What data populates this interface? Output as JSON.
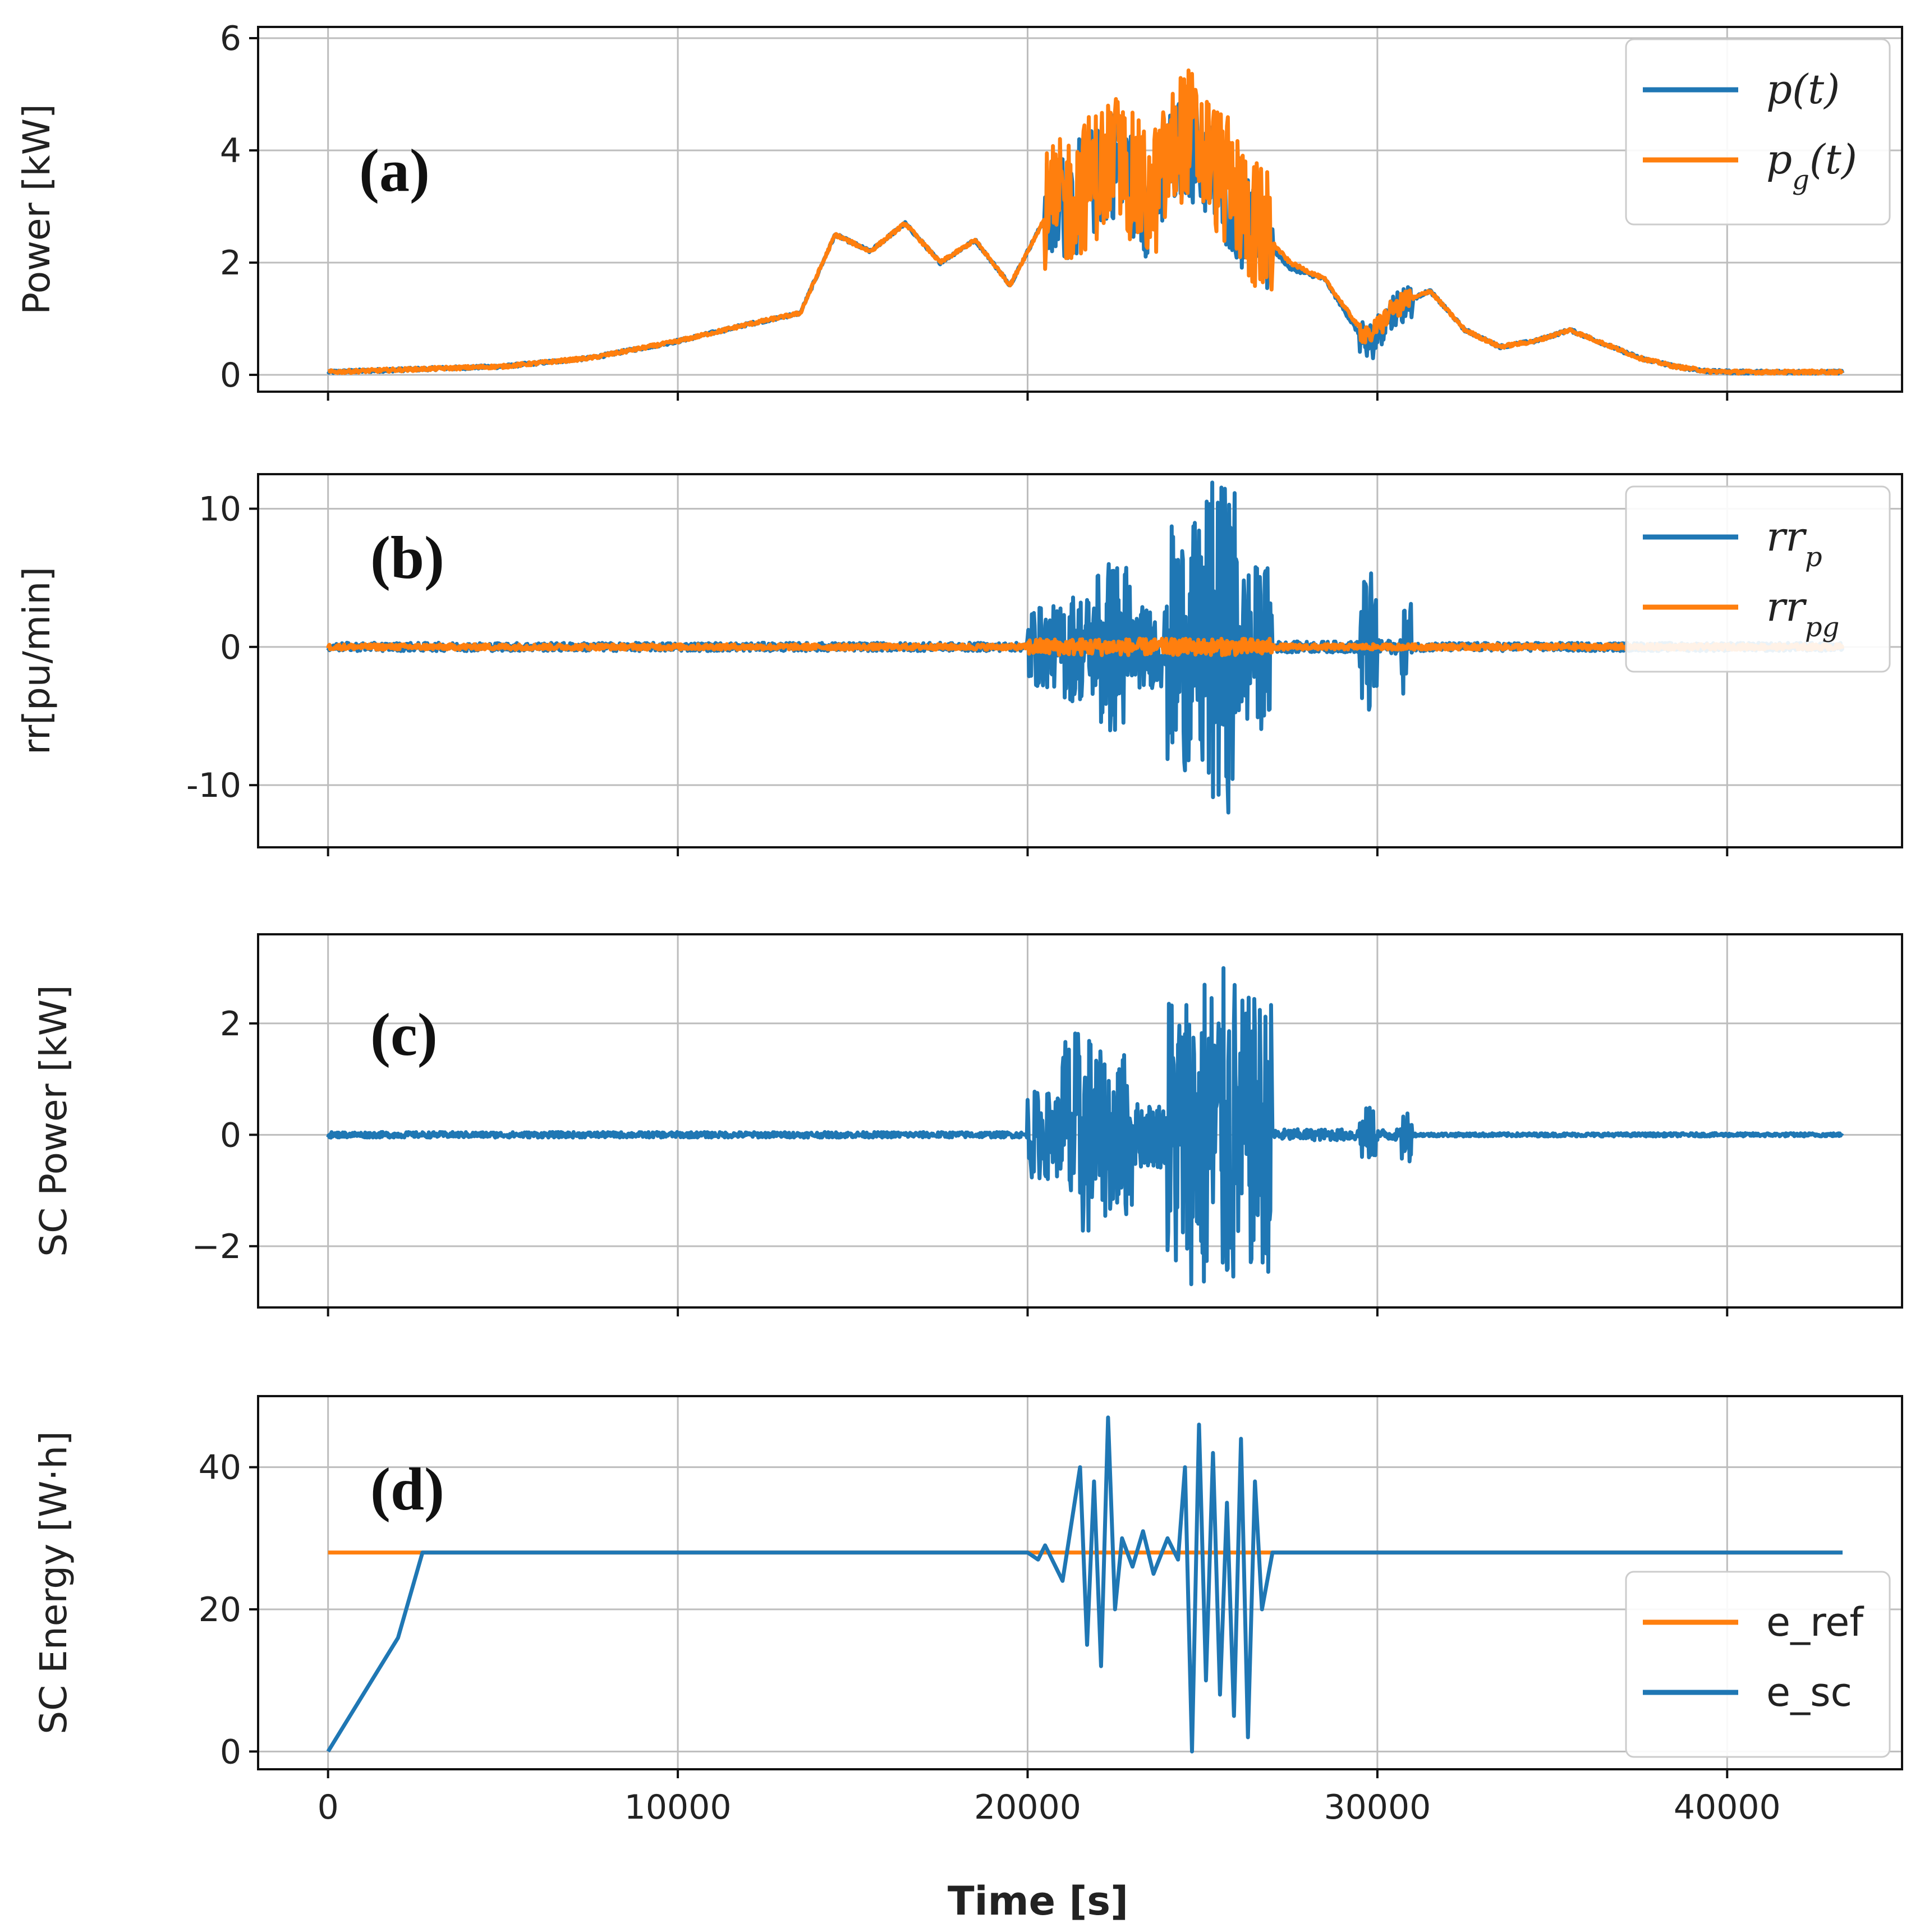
{
  "colors": {
    "blue": "#1f77b4",
    "orange": "#ff7f0e",
    "axis": "#111111",
    "grid": "#bdbdbd"
  },
  "xlabel": "Time [s]",
  "chart_data": [
    {
      "type": "line",
      "panel_label": "(a)",
      "ylabel": "Power [kW]",
      "xlim": [
        -2000,
        45000
      ],
      "ylim": [
        -0.3,
        6.2
      ],
      "xticks": [
        0,
        10000,
        20000,
        30000,
        40000
      ],
      "xtick_labels": [],
      "yticks": [
        0,
        2,
        4,
        6
      ],
      "ytick_labels": [
        "0",
        "2",
        "4",
        "6"
      ],
      "legend": {
        "position": "top-right",
        "entries": [
          {
            "label": "p(t)",
            "color": "blue",
            "math": true
          },
          {
            "label": "p",
            "sub": "g",
            "suffix": "(t)",
            "color": "orange",
            "math": true
          }
        ]
      },
      "series": [
        {
          "name": "p(t)",
          "color": "blue",
          "kind": "smooth",
          "x": [
            0,
            2500,
            5000,
            7500,
            10000,
            12000,
            13500,
            14500,
            15500,
            16500,
            17500,
            18500,
            19500,
            20500,
            21500,
            22500,
            23500,
            24500,
            25500,
            26500,
            27500,
            28500,
            29700,
            30500,
            31500,
            32500,
            33500,
            34500,
            35500,
            36500,
            37500,
            38500,
            39500,
            40500,
            41500,
            42500,
            43300
          ],
          "y": [
            0.05,
            0.1,
            0.15,
            0.3,
            0.6,
            0.9,
            1.1,
            2.5,
            2.2,
            2.7,
            2.0,
            2.4,
            1.6,
            2.8,
            3.2,
            3.8,
            3.0,
            4.2,
            3.4,
            2.6,
            1.9,
            1.7,
            0.5,
            1.2,
            1.5,
            0.8,
            0.5,
            0.6,
            0.8,
            0.55,
            0.3,
            0.15,
            0.06,
            0.05,
            0.05,
            0.05,
            0.05
          ],
          "noise_windows": [
            [
              20500,
              27000,
              1.0
            ],
            [
              29500,
              31000,
              0.35
            ]
          ]
        },
        {
          "name": "p_g(t)",
          "color": "orange",
          "kind": "smooth",
          "x": [
            0,
            2500,
            5000,
            7500,
            10000,
            12000,
            13500,
            14500,
            15500,
            16500,
            17500,
            18500,
            19500,
            20500,
            21500,
            22500,
            23500,
            24500,
            25500,
            26500,
            27500,
            28500,
            29700,
            30500,
            31500,
            32500,
            33500,
            34500,
            35500,
            36500,
            37500,
            38500,
            39500,
            40500,
            41500,
            42500,
            43300
          ],
          "y": [
            0.05,
            0.1,
            0.15,
            0.3,
            0.6,
            0.9,
            1.1,
            2.5,
            2.2,
            2.7,
            2.0,
            2.4,
            1.6,
            2.8,
            3.3,
            3.9,
            3.1,
            4.4,
            3.6,
            2.7,
            2.0,
            1.7,
            0.65,
            1.2,
            1.5,
            0.8,
            0.5,
            0.6,
            0.8,
            0.55,
            0.3,
            0.15,
            0.06,
            0.05,
            0.05,
            0.05,
            0.05
          ],
          "noise_windows": [
            [
              20500,
              27000,
              1.2
            ],
            [
              29500,
              31000,
              0.2
            ]
          ]
        }
      ]
    },
    {
      "type": "line",
      "panel_label": "(b)",
      "ylabel": "rr[pu/min]",
      "xlim": [
        -2000,
        45000
      ],
      "ylim": [
        -14.5,
        12.5
      ],
      "xticks": [
        0,
        10000,
        20000,
        30000,
        40000
      ],
      "xtick_labels": [],
      "yticks": [
        -10,
        0,
        10
      ],
      "ytick_labels": [
        "-10",
        "0",
        "10"
      ],
      "legend": {
        "position": "top-right",
        "entries": [
          {
            "label": "rr",
            "sub": "p",
            "color": "blue",
            "math": true
          },
          {
            "label": "rr",
            "sub": "pg",
            "color": "orange",
            "math": true
          }
        ]
      },
      "series": [
        {
          "name": "rr_p",
          "color": "blue",
          "kind": "spiky",
          "base": 0,
          "envelope": [
            [
              0,
              20000,
              0.3
            ],
            [
              20000,
              21000,
              3.0
            ],
            [
              21000,
              22000,
              4.0
            ],
            [
              22000,
              23000,
              6.5
            ],
            [
              23000,
              24000,
              3.0
            ],
            [
              24000,
              25000,
              9.0
            ],
            [
              25000,
              26000,
              12.0
            ],
            [
              26000,
              27000,
              6.0
            ],
            [
              27000,
              29500,
              0.4
            ],
            [
              29500,
              30000,
              5.5
            ],
            [
              30000,
              30700,
              0.5
            ],
            [
              30700,
              31000,
              3.5
            ],
            [
              31000,
              43300,
              0.3
            ]
          ]
        },
        {
          "name": "rr_pg",
          "color": "orange",
          "kind": "spiky",
          "base": 0,
          "envelope": [
            [
              0,
              20000,
              0.2
            ],
            [
              20000,
              27000,
              0.6
            ],
            [
              27000,
              43300,
              0.2
            ]
          ]
        }
      ]
    },
    {
      "type": "line",
      "panel_label": "(c)",
      "ylabel": "SC Power [kW]",
      "xlim": [
        -2000,
        45000
      ],
      "ylim": [
        -3.1,
        3.6
      ],
      "xticks": [
        0,
        10000,
        20000,
        30000,
        40000
      ],
      "xtick_labels": [],
      "yticks": [
        -2,
        0,
        2
      ],
      "ytick_labels": [
        "−2",
        "0",
        "2"
      ],
      "legend": null,
      "series": [
        {
          "name": "SC power",
          "color": "blue",
          "kind": "spiky",
          "base": 0,
          "envelope": [
            [
              0,
              20000,
              0.05
            ],
            [
              20000,
              21000,
              0.8
            ],
            [
              21000,
              22000,
              1.9
            ],
            [
              22000,
              23000,
              1.5
            ],
            [
              23000,
              24000,
              0.6
            ],
            [
              24000,
              25000,
              2.7
            ],
            [
              25000,
              26000,
              3.0
            ],
            [
              26000,
              27000,
              2.5
            ],
            [
              27000,
              29500,
              0.1
            ],
            [
              29500,
              30000,
              0.5
            ],
            [
              30000,
              30700,
              0.1
            ],
            [
              30700,
              31000,
              0.5
            ],
            [
              31000,
              43300,
              0.03
            ]
          ]
        }
      ]
    },
    {
      "type": "line",
      "panel_label": "(d)",
      "ylabel": "SC Energy [W·h]",
      "xlim": [
        -2000,
        45000
      ],
      "ylim": [
        -2.5,
        50
      ],
      "xticks": [
        0,
        10000,
        20000,
        30000,
        40000
      ],
      "xtick_labels": [
        "0",
        "10000",
        "20000",
        "30000",
        "40000"
      ],
      "yticks": [
        0,
        20,
        40
      ],
      "ytick_labels": [
        "0",
        "20",
        "40"
      ],
      "legend": {
        "position": "bottom-right",
        "entries": [
          {
            "label": "e_ref",
            "color": "orange",
            "math": false
          },
          {
            "label": "e_sc",
            "color": "blue",
            "math": false
          }
        ]
      },
      "series": [
        {
          "name": "e_ref",
          "color": "orange",
          "kind": "points",
          "x": [
            0,
            43300
          ],
          "y": [
            28,
            28
          ]
        },
        {
          "name": "e_sc",
          "color": "blue",
          "kind": "points",
          "x": [
            0,
            2000,
            2700,
            20000,
            20300,
            20500,
            21000,
            21500,
            21700,
            21900,
            22100,
            22300,
            22500,
            22700,
            23000,
            23300,
            23600,
            24000,
            24300,
            24500,
            24700,
            24900,
            25100,
            25300,
            25500,
            25700,
            25900,
            26100,
            26300,
            26500,
            26700,
            27000,
            43300
          ],
          "y": [
            0,
            16,
            28,
            28,
            27,
            29,
            24,
            40,
            15,
            38,
            12,
            47,
            20,
            30,
            26,
            31,
            25,
            30,
            27,
            40,
            0,
            46,
            10,
            42,
            8,
            35,
            5,
            44,
            2,
            38,
            20,
            28,
            28
          ]
        }
      ]
    }
  ]
}
